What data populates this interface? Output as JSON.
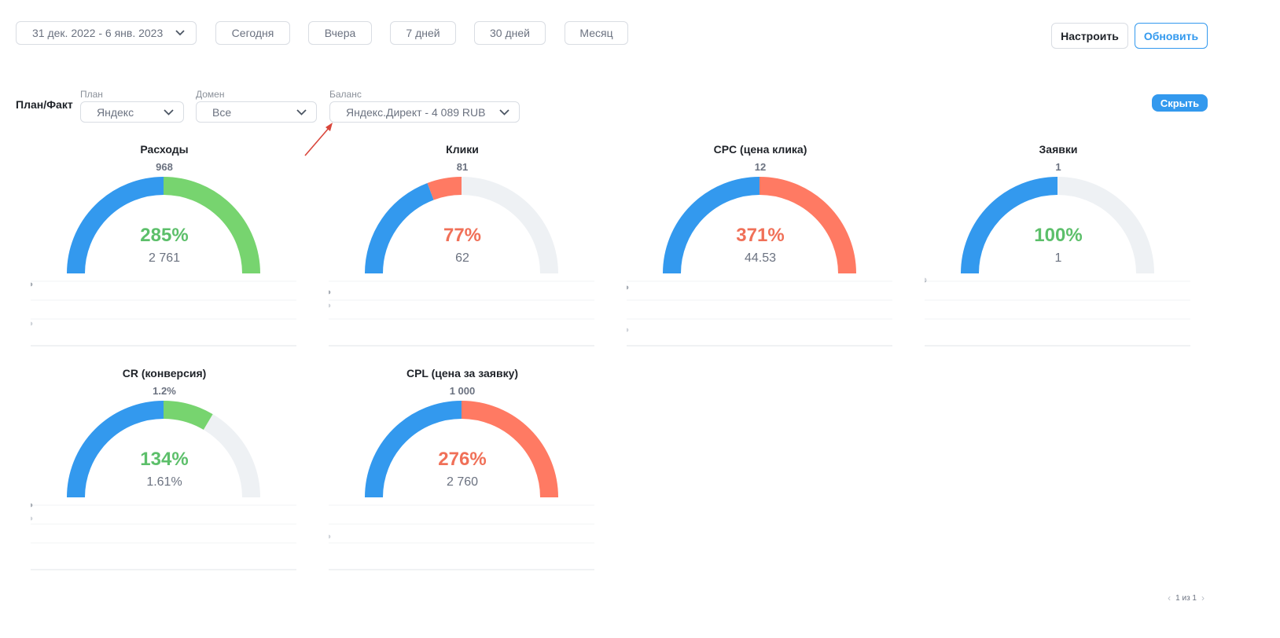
{
  "toolbar": {
    "date_range": "31 дек. 2022 - 6 янв. 2023",
    "presets": [
      "Сегодня",
      "Вчера",
      "7 дней",
      "30 дней",
      "Месяц"
    ],
    "configure_label": "Настроить",
    "refresh_label": "Обновить"
  },
  "filters": {
    "section_title": "План/Факт",
    "plan_label": "План",
    "plan_value": "Яндекс",
    "domain_label": "Домен",
    "domain_value": "Все",
    "balance_label": "Баланс",
    "balance_value": "Яндекс.Директ - 4 089 RUB",
    "hide_label": "Скрыть"
  },
  "colors": {
    "blue": "#3399ee",
    "green": "#77d46f",
    "red": "#ff7a63",
    "track": "#eef1f4",
    "pct_green": "#5cbf6a",
    "pct_red": "#f07058"
  },
  "chart_data": [
    {
      "type": "gauge",
      "title": "Расходы",
      "plan": "968",
      "percent_label": "285%",
      "fact": "2 761",
      "percent": 285,
      "status": "green"
    },
    {
      "type": "gauge",
      "title": "Клики",
      "plan": "81",
      "percent_label": "77%",
      "fact": "62",
      "percent": 77,
      "status": "red"
    },
    {
      "type": "gauge",
      "title": "CPC (цена клика)",
      "plan": "12",
      "percent_label": "371%",
      "fact": "44.53",
      "percent": 371,
      "status": "red"
    },
    {
      "type": "gauge",
      "title": "Заявки",
      "plan": "1",
      "percent_label": "100%",
      "fact": "1",
      "percent": 100,
      "status": "green"
    },
    {
      "type": "gauge",
      "title": "CR (конверсия)",
      "plan": "1.2%",
      "percent_label": "134%",
      "fact": "1.61%",
      "percent": 134,
      "status": "green"
    },
    {
      "type": "gauge",
      "title": "CPL (цена за заявку)",
      "plan": "1 000",
      "percent_label": "276%",
      "fact": "2 760",
      "percent": 276,
      "status": "red"
    }
  ],
  "pager": {
    "text": "1 из 1"
  }
}
